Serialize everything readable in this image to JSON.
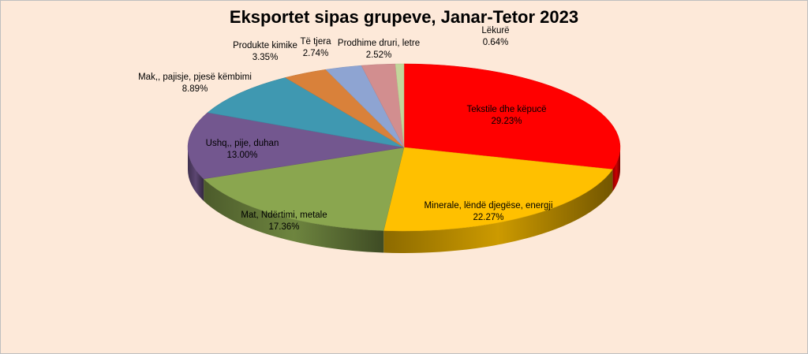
{
  "chart_data": {
    "type": "pie",
    "title": "Eksportet sipas grupeve, Janar-Tetor 2023",
    "series": [
      {
        "name": "Tekstile dhe këpucë",
        "value": 29.23,
        "label": "29.23%",
        "color": "#ff0000"
      },
      {
        "name": "Minerale, lëndë djegëse, energji",
        "value": 22.27,
        "label": "22.27%",
        "color": "#ffc000"
      },
      {
        "name": "Mat, Ndërtimi, metale",
        "value": 17.36,
        "label": "17.36%",
        "color": "#8aa64f"
      },
      {
        "name": "Ushq,, pije, duhan",
        "value": 13.0,
        "label": "13.00%",
        "color": "#73578f"
      },
      {
        "name": "Mak,, pajisje, pjesë këmbimi",
        "value": 8.89,
        "label": "8.89%",
        "color": "#3f98b1"
      },
      {
        "name": "Produkte kimike",
        "value": 3.35,
        "label": "3.35%",
        "color": "#d9813a"
      },
      {
        "name": "Të tjera",
        "value": 2.74,
        "label": "2.74%",
        "color": "#8ea4d2"
      },
      {
        "name": "Prodhime druri, letre",
        "value": 2.52,
        "label": "2.52%",
        "color": "#d28e8f"
      },
      {
        "name": "Lëkurë",
        "value": 0.64,
        "label": "0.64%",
        "color": "#c3d69b"
      }
    ],
    "legend": "none",
    "background": "#fde9d9"
  }
}
